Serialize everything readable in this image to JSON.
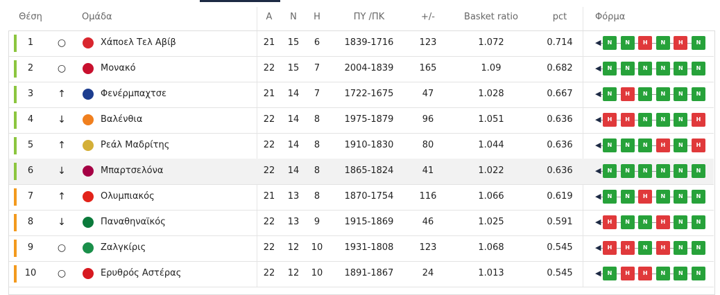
{
  "header": {
    "position": "Θέση",
    "team": "Ομάδα",
    "played": "A",
    "wins": "N",
    "losses": "H",
    "points": "ΠΥ /ΠΚ",
    "diff": "+/-",
    "ratio": "Basket ratio",
    "pct": "pct",
    "form": "Φόρμα"
  },
  "form_colors": {
    "N": "#27a23a",
    "H": "#e0393b"
  },
  "rows": [
    {
      "position": 1,
      "trend": "○",
      "team": "Χάποελ Τελ Αβίβ",
      "played": 21,
      "wins": 15,
      "losses": 6,
      "points": "1839-1716",
      "diff": 123,
      "ratio": 1.072,
      "pct": 0.714,
      "form": [
        "N",
        "N",
        "H",
        "N",
        "H",
        "N"
      ],
      "bar_color": "#8cc63f"
    },
    {
      "position": 2,
      "trend": "○",
      "team": "Μονακό",
      "played": 22,
      "wins": 15,
      "losses": 7,
      "points": "2004-1839",
      "diff": 165,
      "ratio": 1.09,
      "pct": 0.682,
      "form": [
        "N",
        "N",
        "N",
        "N",
        "N",
        "N"
      ],
      "bar_color": "#8cc63f"
    },
    {
      "position": 3,
      "trend": "↑",
      "team": "Φενέρμπαχτσε",
      "played": 21,
      "wins": 14,
      "losses": 7,
      "points": "1722-1675",
      "diff": 47,
      "ratio": 1.028,
      "pct": 0.667,
      "form": [
        "N",
        "H",
        "N",
        "N",
        "N",
        "N"
      ],
      "bar_color": "#8cc63f"
    },
    {
      "position": 4,
      "trend": "↓",
      "team": "Βαλένθια",
      "played": 22,
      "wins": 14,
      "losses": 8,
      "points": "1975-1879",
      "diff": 96,
      "ratio": 1.051,
      "pct": 0.636,
      "form": [
        "H",
        "H",
        "N",
        "N",
        "N",
        "H"
      ],
      "bar_color": "#8cc63f"
    },
    {
      "position": 5,
      "trend": "↑",
      "team": "Ρεάλ Μαδρίτης",
      "played": 22,
      "wins": 14,
      "losses": 8,
      "points": "1910-1830",
      "diff": 80,
      "ratio": 1.044,
      "pct": 0.636,
      "form": [
        "N",
        "N",
        "N",
        "H",
        "N",
        "H"
      ],
      "bar_color": "#8cc63f"
    },
    {
      "position": 6,
      "trend": "↓",
      "team": "Μπαρτσελόνα",
      "played": 22,
      "wins": 14,
      "losses": 8,
      "points": "1865-1824",
      "diff": 41,
      "ratio": 1.022,
      "pct": 0.636,
      "form": [
        "N",
        "N",
        "N",
        "N",
        "N",
        "N"
      ],
      "bar_color": "#8cc63f"
    },
    {
      "position": 7,
      "trend": "↑",
      "team": "Ολυμπιακός",
      "played": 21,
      "wins": 13,
      "losses": 8,
      "points": "1870-1754",
      "diff": 116,
      "ratio": 1.066,
      "pct": 0.619,
      "form": [
        "N",
        "N",
        "H",
        "N",
        "N",
        "N"
      ],
      "bar_color": "#f39a1e"
    },
    {
      "position": 8,
      "trend": "↓",
      "team": "Παναθηναϊκός",
      "played": 22,
      "wins": 13,
      "losses": 9,
      "points": "1915-1869",
      "diff": 46,
      "ratio": 1.025,
      "pct": 0.591,
      "form": [
        "H",
        "N",
        "N",
        "H",
        "N",
        "N"
      ],
      "bar_color": "#f39a1e"
    },
    {
      "position": 9,
      "trend": "○",
      "team": "Ζαλγκίρις",
      "played": 22,
      "wins": 12,
      "losses": 10,
      "points": "1931-1808",
      "diff": 123,
      "ratio": 1.068,
      "pct": 0.545,
      "form": [
        "H",
        "H",
        "N",
        "H",
        "N",
        "N"
      ],
      "bar_color": "#f39a1e"
    },
    {
      "position": 10,
      "trend": "○",
      "team": "Ερυθρός Αστέρας",
      "played": 22,
      "wins": 12,
      "losses": 10,
      "points": "1891-1867",
      "diff": 24,
      "ratio": 1.013,
      "pct": 0.545,
      "form": [
        "N",
        "H",
        "H",
        "N",
        "N",
        "N"
      ],
      "bar_color": "#f39a1e"
    }
  ]
}
